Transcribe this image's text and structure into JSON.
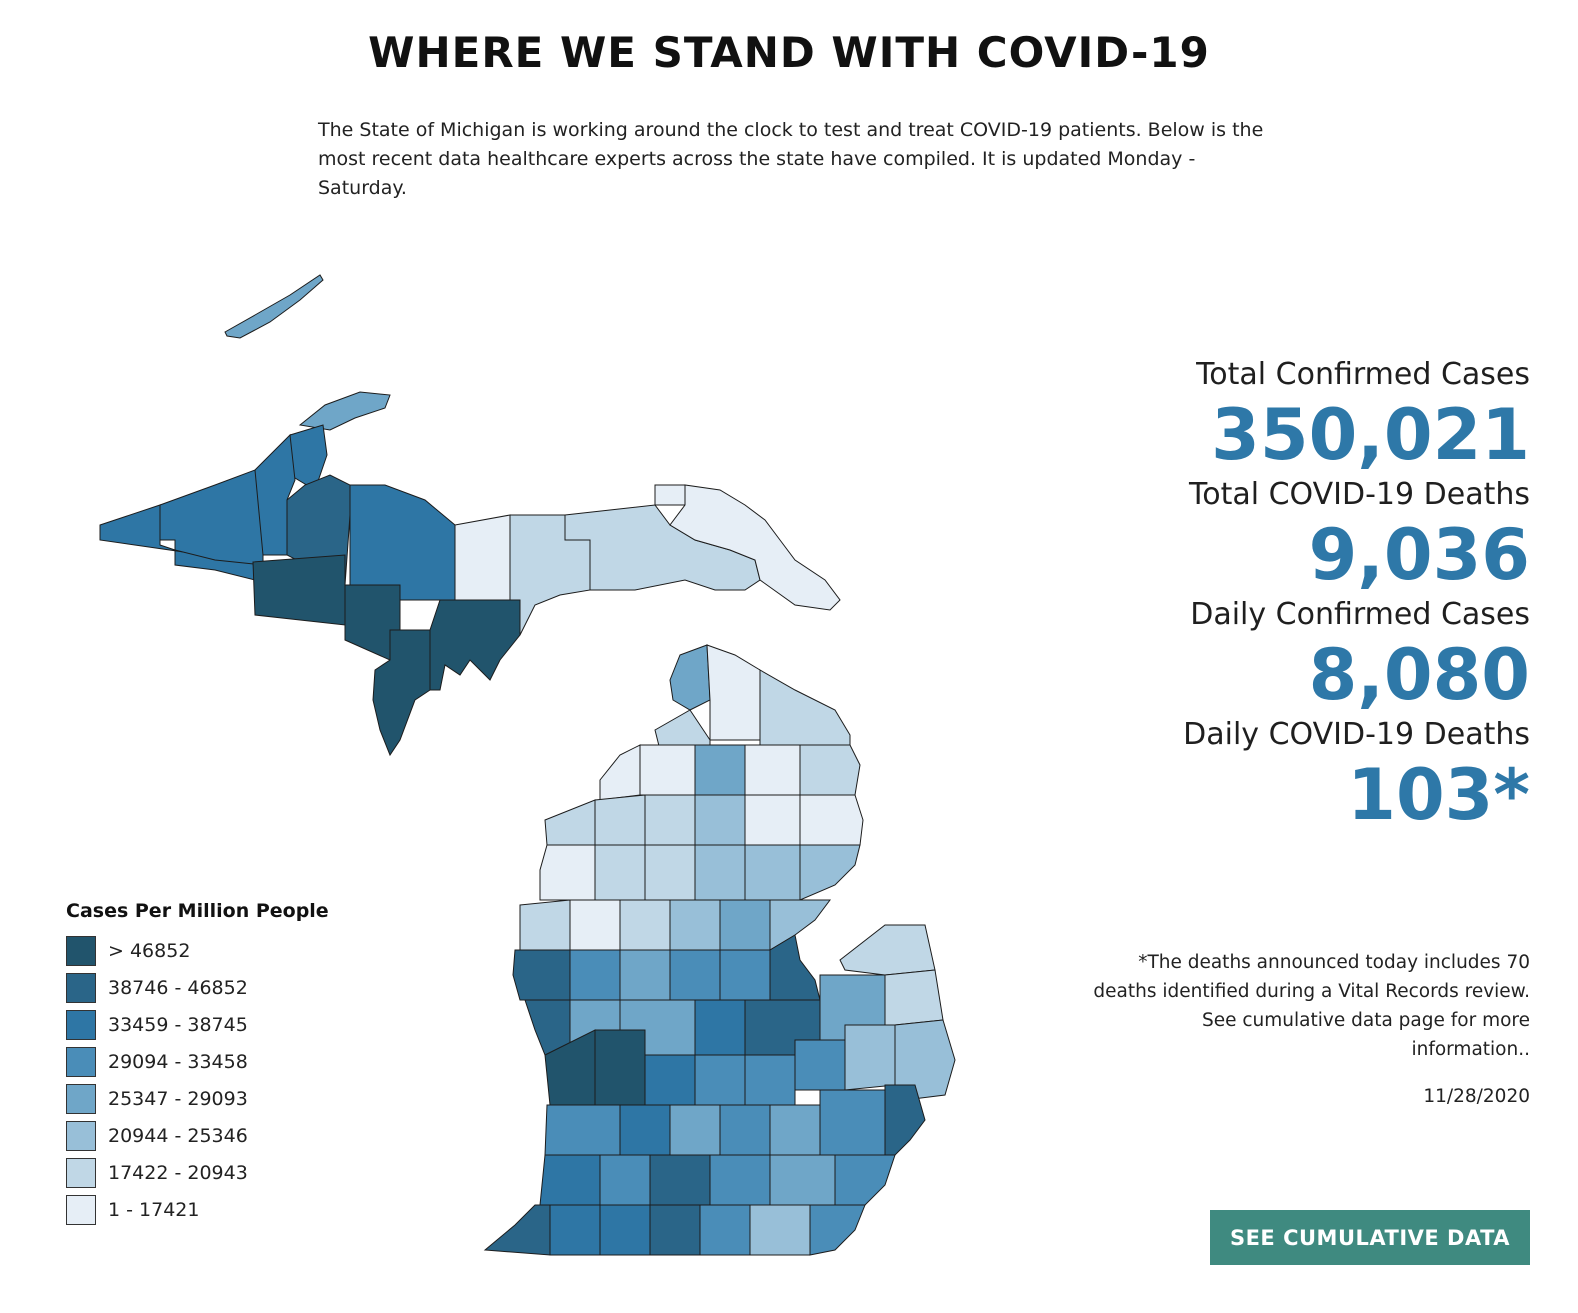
{
  "header": {
    "title": "WHERE WE STAND WITH COVID-19",
    "intro": "The State of Michigan is working around the clock to test and treat COVID-19 patients. Below is the most recent data healthcare experts across the state have compiled. It is updated Monday - Saturday."
  },
  "stats": [
    {
      "label": "Total Confirmed Cases",
      "value": "350,021"
    },
    {
      "label": "Total COVID-19 Deaths",
      "value": "9,036"
    },
    {
      "label": "Daily Confirmed Cases",
      "value": "8,080"
    },
    {
      "label": "Daily COVID-19 Deaths",
      "value": "103*"
    }
  ],
  "legend": {
    "title": "Cases Per Million People",
    "items": [
      {
        "label": "> 46852",
        "color": "#21546c"
      },
      {
        "label": "38746 - 46852",
        "color": "#2a6588"
      },
      {
        "label": "33459 - 38745",
        "color": "#2e76a5"
      },
      {
        "label": "29094 - 33458",
        "color": "#4a8db8"
      },
      {
        "label": "25347 - 29093",
        "color": "#6fa6c8"
      },
      {
        "label": "20944 - 25346",
        "color": "#98bfd8"
      },
      {
        "label": "17422 - 20943",
        "color": "#c0d7e6"
      },
      {
        "label": "1 - 17421",
        "color": "#e6eef6"
      }
    ]
  },
  "note": "*The deaths announced today includes 70 deaths identified during a Vital Records review. See cumulative data page for more information..",
  "date": "11/28/2020",
  "cta": {
    "label": "SEE CUMULATIVE DATA"
  },
  "colors": {
    "accent": "#2e78a8",
    "button": "#3f8a80"
  }
}
